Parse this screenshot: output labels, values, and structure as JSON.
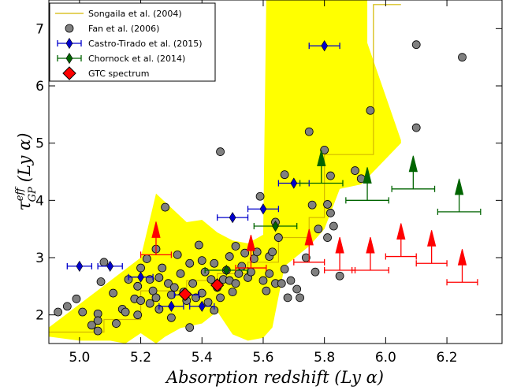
{
  "chart_data": {
    "type": "scatter",
    "title": "",
    "xlabel": "Absorption redshift (Ly α)",
    "ylabel_main": "τ",
    "ylabel_sup": "eff",
    "ylabel_sub": "GP",
    "ylabel_rest": "(Ly α)",
    "xlim": [
      4.9,
      6.38
    ],
    "ylim": [
      1.5,
      7.5
    ],
    "xticks": [
      5.0,
      5.2,
      5.4,
      5.6,
      5.8,
      6.0,
      6.2
    ],
    "xtick_labels": [
      "5.0",
      "5.2",
      "5.4",
      "5.6",
      "5.8",
      "6.0",
      "6.2"
    ],
    "yticks": [
      2,
      3,
      4,
      5,
      6,
      7
    ],
    "ytick_labels": [
      "2",
      "3",
      "4",
      "5",
      "6",
      "7"
    ],
    "grid": false,
    "legend_position": "top-left",
    "legend": [
      {
        "label": "Songaila et al. (2004)",
        "kind": "line",
        "color": "#d4b800"
      },
      {
        "label": "Fan et al. (2006)",
        "kind": "circle",
        "color": "#808080"
      },
      {
        "label": "Castro-Tirado et al. (2015)",
        "kind": "diamond",
        "color": "#0000cc"
      },
      {
        "label": "Chornock et al. (2014)",
        "kind": "diamond",
        "color": "#006400"
      },
      {
        "label": "GTC spectrum",
        "kind": "bigdiamond",
        "color": "#ff0000"
      }
    ],
    "songaila_band": {
      "color": "#ffff00",
      "polygon": [
        [
          4.9,
          1.62
        ],
        [
          4.9,
          1.78
        ],
        [
          5.2,
          3.0
        ],
        [
          5.25,
          4.12
        ],
        [
          5.35,
          3.62
        ],
        [
          5.4,
          3.66
        ],
        [
          5.45,
          3.44
        ],
        [
          5.5,
          3.3
        ],
        [
          5.55,
          3.25
        ],
        [
          5.6,
          3.4
        ],
        [
          5.61,
          7.5
        ],
        [
          5.94,
          7.5
        ],
        [
          5.94,
          6.75
        ],
        [
          6.05,
          5.05
        ],
        [
          6.05,
          5.0
        ],
        [
          5.92,
          4.28
        ],
        [
          5.85,
          4.2
        ],
        [
          5.8,
          3.5
        ],
        [
          5.75,
          3.2
        ],
        [
          5.67,
          2.85
        ],
        [
          5.63,
          1.78
        ],
        [
          5.6,
          1.6
        ],
        [
          5.55,
          1.55
        ],
        [
          5.5,
          1.66
        ],
        [
          5.45,
          2.06
        ],
        [
          5.4,
          1.85
        ],
        [
          5.33,
          1.77
        ],
        [
          5.28,
          1.62
        ],
        [
          5.25,
          1.5
        ],
        [
          5.2,
          1.68
        ],
        [
          5.15,
          1.5
        ],
        [
          5.1,
          1.55
        ],
        [
          5.0,
          1.55
        ]
      ]
    },
    "songaila_line": {
      "color": "#d4b800",
      "points": [
        [
          4.9,
          1.7
        ],
        [
          5.08,
          1.7
        ],
        [
          5.08,
          1.92
        ],
        [
          5.2,
          1.92
        ],
        [
          5.2,
          2.42
        ],
        [
          5.25,
          2.42
        ],
        [
          5.35,
          2.42
        ],
        [
          5.35,
          2.6
        ],
        [
          5.45,
          2.6
        ],
        [
          5.45,
          2.72
        ],
        [
          5.55,
          2.72
        ],
        [
          5.55,
          2.92
        ],
        [
          5.65,
          2.92
        ],
        [
          5.65,
          3.35
        ],
        [
          5.7,
          3.35
        ],
        [
          5.75,
          3.35
        ],
        [
          5.75,
          3.7
        ],
        [
          5.8,
          3.7
        ],
        [
          5.8,
          4.8
        ],
        [
          5.9,
          4.8
        ],
        [
          5.96,
          4.8
        ],
        [
          5.96,
          7.42
        ],
        [
          6.05,
          7.42
        ]
      ]
    },
    "fan": {
      "color": "#808080",
      "points": [
        [
          4.93,
          2.05
        ],
        [
          4.96,
          2.15
        ],
        [
          4.99,
          2.28
        ],
        [
          5.01,
          2.05
        ],
        [
          5.04,
          1.82
        ],
        [
          5.06,
          1.72
        ],
        [
          5.06,
          2.02
        ],
        [
          5.06,
          1.9
        ],
        [
          5.07,
          2.58
        ],
        [
          5.08,
          2.92
        ],
        [
          5.11,
          2.38
        ],
        [
          5.12,
          1.85
        ],
        [
          5.14,
          2.1
        ],
        [
          5.15,
          2.05
        ],
        [
          5.16,
          2.62
        ],
        [
          5.18,
          2.28
        ],
        [
          5.19,
          2.0
        ],
        [
          5.19,
          2.5
        ],
        [
          5.2,
          2.25
        ],
        [
          5.2,
          2.82
        ],
        [
          5.22,
          2.98
        ],
        [
          5.23,
          2.62
        ],
        [
          5.23,
          2.2
        ],
        [
          5.24,
          2.42
        ],
        [
          5.25,
          2.3
        ],
        [
          5.25,
          3.15
        ],
        [
          5.26,
          2.1
        ],
        [
          5.26,
          2.65
        ],
        [
          5.27,
          2.82
        ],
        [
          5.28,
          3.88
        ],
        [
          5.29,
          2.55
        ],
        [
          5.3,
          2.35
        ],
        [
          5.3,
          1.95
        ],
        [
          5.31,
          2.48
        ],
        [
          5.32,
          3.05
        ],
        [
          5.33,
          2.72
        ],
        [
          5.34,
          2.4
        ],
        [
          5.35,
          2.25
        ],
        [
          5.36,
          2.9
        ],
        [
          5.36,
          1.78
        ],
        [
          5.37,
          2.55
        ],
        [
          5.38,
          2.3
        ],
        [
          5.39,
          3.22
        ],
        [
          5.4,
          2.95
        ],
        [
          5.4,
          2.38
        ],
        [
          5.41,
          2.75
        ],
        [
          5.42,
          2.22
        ],
        [
          5.43,
          2.62
        ],
        [
          5.44,
          2.08
        ],
        [
          5.44,
          2.9
        ],
        [
          5.45,
          2.48
        ],
        [
          5.46,
          2.3
        ],
        [
          5.46,
          4.85
        ],
        [
          5.47,
          2.62
        ],
        [
          5.48,
          2.78
        ],
        [
          5.49,
          3.02
        ],
        [
          5.49,
          2.6
        ],
        [
          5.5,
          2.4
        ],
        [
          5.51,
          3.2
        ],
        [
          5.51,
          2.55
        ],
        [
          5.52,
          2.72
        ],
        [
          5.53,
          2.85
        ],
        [
          5.54,
          3.08
        ],
        [
          5.55,
          2.65
        ],
        [
          5.56,
          2.75
        ],
        [
          5.57,
          2.98
        ],
        [
          5.58,
          3.1
        ],
        [
          5.59,
          4.07
        ],
        [
          5.6,
          2.6
        ],
        [
          5.61,
          2.42
        ],
        [
          5.62,
          2.72
        ],
        [
          5.62,
          3.02
        ],
        [
          5.63,
          3.1
        ],
        [
          5.64,
          2.55
        ],
        [
          5.64,
          3.62
        ],
        [
          5.65,
          3.35
        ],
        [
          5.66,
          2.55
        ],
        [
          5.67,
          2.8
        ],
        [
          5.67,
          4.45
        ],
        [
          5.68,
          2.3
        ],
        [
          5.69,
          2.6
        ],
        [
          5.71,
          2.45
        ],
        [
          5.72,
          2.3
        ],
        [
          5.74,
          3.0
        ],
        [
          5.75,
          5.2
        ],
        [
          5.76,
          3.92
        ],
        [
          5.77,
          2.75
        ],
        [
          5.78,
          3.5
        ],
        [
          5.8,
          4.88
        ],
        [
          5.81,
          3.93
        ],
        [
          5.81,
          3.35
        ],
        [
          5.82,
          3.78
        ],
        [
          5.82,
          4.43
        ],
        [
          5.83,
          3.55
        ],
        [
          5.85,
          2.68
        ],
        [
          5.9,
          4.52
        ],
        [
          5.92,
          4.38
        ],
        [
          5.95,
          5.57
        ],
        [
          6.1,
          6.72
        ],
        [
          6.1,
          5.27
        ],
        [
          6.25,
          6.5
        ]
      ]
    },
    "castro": {
      "color": "#0000cc",
      "points": [
        [
          5.0,
          2.85,
          0.04
        ],
        [
          5.1,
          2.85,
          0.04
        ],
        [
          5.2,
          2.66,
          0.04
        ],
        [
          5.3,
          2.15,
          0.04
        ],
        [
          5.35,
          2.35,
          0.04
        ],
        [
          5.4,
          2.15,
          0.04
        ],
        [
          5.5,
          3.7,
          0.05
        ],
        [
          5.6,
          3.85,
          0.05
        ],
        [
          5.7,
          4.3,
          0.05
        ],
        [
          5.8,
          6.7,
          0.05
        ]
      ]
    },
    "chornock": {
      "color": "#006400",
      "points": [
        [
          5.48,
          2.78,
          0.07
        ],
        [
          5.64,
          3.55,
          0.07
        ]
      ],
      "limits": [
        [
          5.79,
          4.3,
          0.07
        ],
        [
          5.94,
          4.0,
          0.07
        ],
        [
          6.09,
          4.2,
          0.07
        ],
        [
          6.24,
          3.8,
          0.07
        ]
      ]
    },
    "gtc": {
      "color": "#ff0000",
      "points": [
        [
          5.345,
          2.36
        ],
        [
          5.45,
          2.52
        ]
      ],
      "limits": [
        [
          5.25,
          3.05,
          0.05
        ],
        [
          5.56,
          2.82,
          0.05
        ],
        [
          5.75,
          2.92,
          0.05
        ],
        [
          5.85,
          2.78,
          0.05
        ],
        [
          5.95,
          2.78,
          0.06
        ],
        [
          6.05,
          3.02,
          0.05
        ],
        [
          6.15,
          2.9,
          0.05
        ],
        [
          6.25,
          2.57,
          0.05
        ]
      ]
    }
  }
}
